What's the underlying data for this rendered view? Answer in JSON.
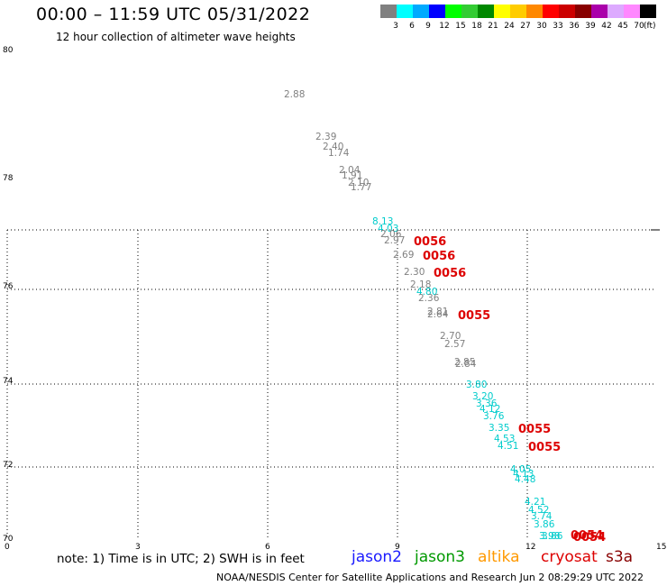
{
  "header": {
    "title": "00:00 – 11:59 UTC 05/31/2022",
    "subtitle": "12 hour collection of altimeter wave heights"
  },
  "legend": {
    "unit": "(ft)",
    "bins": [
      {
        "label": "3",
        "color": "#808080"
      },
      {
        "label": "6",
        "color": "#00ffff"
      },
      {
        "label": "9",
        "color": "#00aaff"
      },
      {
        "label": "12",
        "color": "#0000ff"
      },
      {
        "label": "15",
        "color": "#00ff00"
      },
      {
        "label": "18",
        "color": "#33cc33"
      },
      {
        "label": "21",
        "color": "#008800"
      },
      {
        "label": "24",
        "color": "#ffff00"
      },
      {
        "label": "27",
        "color": "#ffcc00"
      },
      {
        "label": "30",
        "color": "#ff8800"
      },
      {
        "label": "33",
        "color": "#ff0000"
      },
      {
        "label": "36",
        "color": "#cc0000"
      },
      {
        "label": "39",
        "color": "#880000"
      },
      {
        "label": "42",
        "color": "#aa00aa"
      },
      {
        "label": "45",
        "color": "#ddaaff"
      },
      {
        "label": "70",
        "color": "#ff88ff"
      },
      {
        "label": "",
        "color": "#000000"
      }
    ]
  },
  "axes": {
    "lat_labels": [
      "80",
      "78",
      "76",
      "74",
      "72",
      "70"
    ],
    "lon_labels": [
      "0",
      "3",
      "6",
      "9",
      "12",
      "15"
    ]
  },
  "track_colors": {
    "grey": "#808080",
    "cyan": "#00cccc",
    "red": "#dd0000"
  },
  "swh_points": [
    {
      "text": "2.88",
      "c": "grey"
    },
    {
      "text": "2.39",
      "c": "grey"
    },
    {
      "text": "2.40",
      "c": "grey"
    },
    {
      "text": "1.74",
      "c": "grey"
    },
    {
      "text": "2.04",
      "c": "grey"
    },
    {
      "text": "1.91",
      "c": "grey"
    },
    {
      "text": "2.10",
      "c": "grey"
    },
    {
      "text": "1.77",
      "c": "grey"
    },
    {
      "text": "8.13",
      "c": "cyan"
    },
    {
      "text": "4.03",
      "c": "cyan"
    },
    {
      "text": "2.06",
      "c": "grey"
    },
    {
      "text": "2.97",
      "c": "grey"
    },
    {
      "text": "2.69",
      "c": "grey"
    },
    {
      "text": "2.30",
      "c": "grey"
    },
    {
      "text": "2.18",
      "c": "grey"
    },
    {
      "text": "4.80",
      "c": "cyan"
    },
    {
      "text": "2.36",
      "c": "grey"
    },
    {
      "text": "2.81",
      "c": "grey"
    },
    {
      "text": "2.64",
      "c": "grey"
    },
    {
      "text": "2.70",
      "c": "grey"
    },
    {
      "text": "2.57",
      "c": "grey"
    },
    {
      "text": "2.85",
      "c": "grey"
    },
    {
      "text": "2.84",
      "c": "grey"
    },
    {
      "text": "3.80",
      "c": "cyan"
    },
    {
      "text": "3.20",
      "c": "cyan"
    },
    {
      "text": "3.36",
      "c": "cyan"
    },
    {
      "text": "4.12",
      "c": "cyan"
    },
    {
      "text": "3.76",
      "c": "cyan"
    },
    {
      "text": "3.35",
      "c": "cyan"
    },
    {
      "text": "4.53",
      "c": "cyan"
    },
    {
      "text": "4.51",
      "c": "cyan"
    },
    {
      "text": "4.05",
      "c": "cyan"
    },
    {
      "text": "4.13",
      "c": "cyan"
    },
    {
      "text": "4.48",
      "c": "cyan"
    },
    {
      "text": "4.21",
      "c": "cyan"
    },
    {
      "text": "4.52",
      "c": "cyan"
    },
    {
      "text": "3.74",
      "c": "cyan"
    },
    {
      "text": "3.86",
      "c": "cyan"
    },
    {
      "text": "3.98",
      "c": "cyan"
    },
    {
      "text": "3.86",
      "c": "cyan"
    }
  ],
  "time_labels": [
    {
      "text": "0056"
    },
    {
      "text": "0056"
    },
    {
      "text": "0056"
    },
    {
      "text": "0055"
    },
    {
      "text": "0055"
    },
    {
      "text": "0055"
    },
    {
      "text": "0054"
    },
    {
      "text": "0054"
    }
  ],
  "footer": {
    "note": "note:  1) Time is in UTC;  2) SWH is in feet",
    "satellites": [
      {
        "name": "jason2",
        "color": "#1a1aff"
      },
      {
        "name": "jason3",
        "color": "#009900"
      },
      {
        "name": "altika",
        "color": "#ff9900"
      },
      {
        "name": "cryosat",
        "color": "#dd0000"
      },
      {
        "name": "s3a",
        "color": "#880000"
      }
    ],
    "credit": "NOAA/NESDIS Center for Satellite Applications and Research     Jun  2 08:29:29 UTC 2022"
  }
}
